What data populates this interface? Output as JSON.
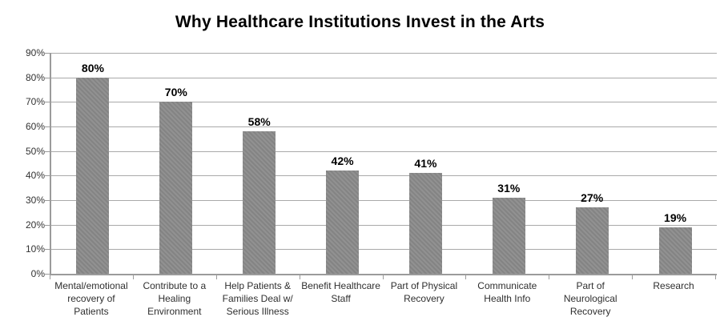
{
  "chart_data": {
    "type": "bar",
    "title": "Why Healthcare Institutions Invest in the Arts",
    "categories": [
      "Mental/emotional recovery of Patients",
      "Contribute to a Healing Environment",
      "Help Patients & Families Deal w/ Serious Illness",
      "Benefit Healthcare Staff",
      "Part of Physical Recovery",
      "Communicate Health Info",
      "Part of Neurological Recovery",
      "Research"
    ],
    "values": [
      80,
      70,
      58,
      42,
      41,
      31,
      27,
      19
    ],
    "value_labels": [
      "80%",
      "70%",
      "58%",
      "42%",
      "41%",
      "31%",
      "27%",
      "19%"
    ],
    "y_ticks": [
      "90%",
      "80%",
      "70%",
      "60%",
      "50%",
      "40%",
      "30%",
      "20%",
      "10%",
      "0%"
    ],
    "ylim": [
      0,
      90
    ],
    "xlabel": "",
    "ylabel": "",
    "grid": true,
    "legend": "none",
    "colors": {
      "bar": "#8b8b8b",
      "gridline": "#a9a9a9",
      "axis": "#9b9b9b",
      "title_text": "#000000",
      "value_text": "#000000",
      "tick_text": "#333333"
    }
  }
}
